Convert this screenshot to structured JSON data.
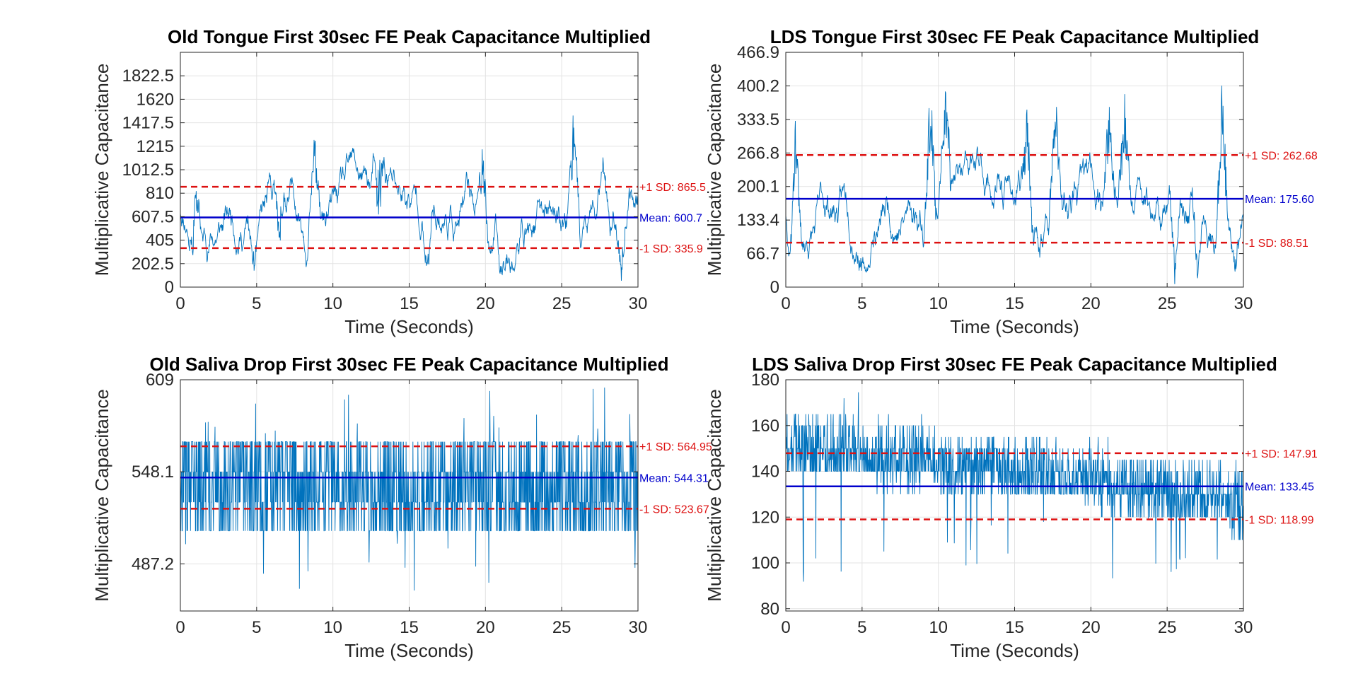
{
  "chart_data": [
    {
      "type": "line",
      "title": "Old Tongue First 30sec FE Peak Capacitance Multiplied",
      "xlabel": "Time (Seconds)",
      "ylabel": "Multiplicative Capacitance",
      "xlim": [
        0,
        30
      ],
      "ylim": [
        0,
        2025
      ],
      "xticks": [
        0,
        5,
        10,
        15,
        20,
        25,
        30
      ],
      "xtick_labels": [
        "0",
        "5",
        "10",
        "15",
        "20",
        "25",
        "30"
      ],
      "yticks": [
        0,
        202.5,
        405,
        607.5,
        810,
        1012.5,
        1215,
        1417.5,
        1620,
        1822.5
      ],
      "ytick_labels": [
        "0",
        "202.5",
        "405",
        "607.5",
        "810",
        "1012.5",
        "1215",
        "1417.5",
        "1620",
        "1822.5"
      ],
      "grid": true,
      "mean": 600.7,
      "plus_sd": 865.5,
      "minus_sd": 335.9,
      "mean_label": "Mean: 600.7",
      "plus_sd_label": "+1 SD: 865.5",
      "minus_sd_label": "-1 SD: 335.9",
      "series_color": "#0072BD",
      "signal": {
        "low": 0,
        "high": 1750,
        "volatility": 0.7,
        "bursts": [
          [
            1.0,
            1100
          ],
          [
            6.5,
            1230
          ],
          [
            8.8,
            1350
          ],
          [
            13.0,
            1750
          ],
          [
            19.8,
            1250
          ],
          [
            25.8,
            1620
          ],
          [
            27.7,
            1150
          ]
        ],
        "dips": [
          [
            0.8,
            0
          ],
          [
            4.8,
            30
          ],
          [
            6.5,
            0
          ],
          [
            13.0,
            0
          ],
          [
            16.2,
            0
          ],
          [
            21.0,
            0
          ],
          [
            28.9,
            0
          ]
        ],
        "seed": 11
      }
    },
    {
      "type": "line",
      "title": "LDS Tongue First 30sec FE Peak Capacitance Multiplied",
      "xlabel": "Time (Seconds)",
      "ylabel": "Multiplicative Capacitance",
      "xlim": [
        0,
        30
      ],
      "ylim": [
        0,
        467
      ],
      "xticks": [
        0,
        5,
        10,
        15,
        20,
        25,
        30
      ],
      "xtick_labels": [
        "0",
        "5",
        "10",
        "15",
        "20",
        "25",
        "30"
      ],
      "yticks": [
        0,
        66.7,
        133.4,
        200.1,
        266.8,
        333.5,
        400.2,
        466.9
      ],
      "ytick_labels": [
        "0",
        "66.7",
        "133.4",
        "200.1",
        "266.8",
        "333.5",
        "400.2",
        "466.9"
      ],
      "grid": true,
      "mean": 175.6,
      "plus_sd": 262.68,
      "minus_sd": 88.51,
      "mean_label": "Mean: 175.60",
      "plus_sd_label": "+1 SD: 262.68",
      "minus_sd_label": "-1 SD: 88.51",
      "series_color": "#0072BD",
      "signal": {
        "low": 0,
        "high": 440,
        "volatility": 0.7,
        "bursts": [
          [
            0.6,
            360
          ],
          [
            9.5,
            440
          ],
          [
            10.5,
            430
          ],
          [
            15.8,
            370
          ],
          [
            17.7,
            390
          ],
          [
            21.2,
            420
          ],
          [
            22.2,
            420
          ],
          [
            28.6,
            440
          ]
        ],
        "dips": [
          [
            0.3,
            0
          ],
          [
            5.3,
            30
          ],
          [
            25.5,
            0
          ],
          [
            27.0,
            0
          ],
          [
            29.5,
            0
          ]
        ],
        "seed": 23
      }
    },
    {
      "type": "line",
      "title": "Old Saliva Drop First 30sec FE Peak Capacitance Multiplied",
      "xlabel": "Time (Seconds)",
      "ylabel": "Multiplicative Capacitance",
      "xlim": [
        0,
        30
      ],
      "ylim": [
        456,
        609
      ],
      "xticks": [
        0,
        5,
        10,
        15,
        20,
        25,
        30
      ],
      "xtick_labels": [
        "0",
        "5",
        "10",
        "15",
        "20",
        "25",
        "30"
      ],
      "yticks": [
        487.2,
        548.1,
        609
      ],
      "ytick_labels": [
        "487.2",
        "548.1",
        "609"
      ],
      "grid": true,
      "mean": 544.31,
      "plus_sd": 564.95,
      "minus_sd": 523.67,
      "mean_label": "Mean: 544.31",
      "plus_sd_label": "+1 SD: 564.95",
      "minus_sd_label": "-1 SD: 523.67",
      "series_color": "#0072BD",
      "signal": {
        "levels": [
          509,
          528,
          548,
          568
        ],
        "low": 462,
        "high": 609,
        "seed": 37
      }
    },
    {
      "type": "line",
      "title": "LDS Saliva Drop First 30sec FE Peak Capacitance Multiplied",
      "xlabel": "Time (Seconds)",
      "ylabel": "Multiplicative Capacitance",
      "xlim": [
        0,
        30
      ],
      "ylim": [
        79,
        180
      ],
      "xticks": [
        0,
        5,
        10,
        15,
        20,
        25,
        30
      ],
      "xtick_labels": [
        "0",
        "5",
        "10",
        "15",
        "20",
        "25",
        "30"
      ],
      "yticks": [
        80,
        100,
        120,
        140,
        160,
        180
      ],
      "ytick_labels": [
        "80",
        "100",
        "120",
        "140",
        "160",
        "180"
      ],
      "grid": true,
      "mean": 133.45,
      "plus_sd": 147.91,
      "minus_sd": 118.99,
      "mean_label": "Mean: 133.45",
      "plus_sd_label": "+1 SD: 147.91",
      "minus_sd_label": "-1 SD: 118.99",
      "series_color": "#0072BD",
      "signal": {
        "trend": [
          [
            0,
            150
          ],
          [
            15,
            140
          ],
          [
            30,
            125
          ]
        ],
        "low": 84,
        "high": 176,
        "seed": 53
      }
    }
  ],
  "colors": {
    "mean_line": "#0000CC",
    "sd_line": "#DD1111",
    "grid": "#E3E3E3",
    "axes": "#262626"
  }
}
